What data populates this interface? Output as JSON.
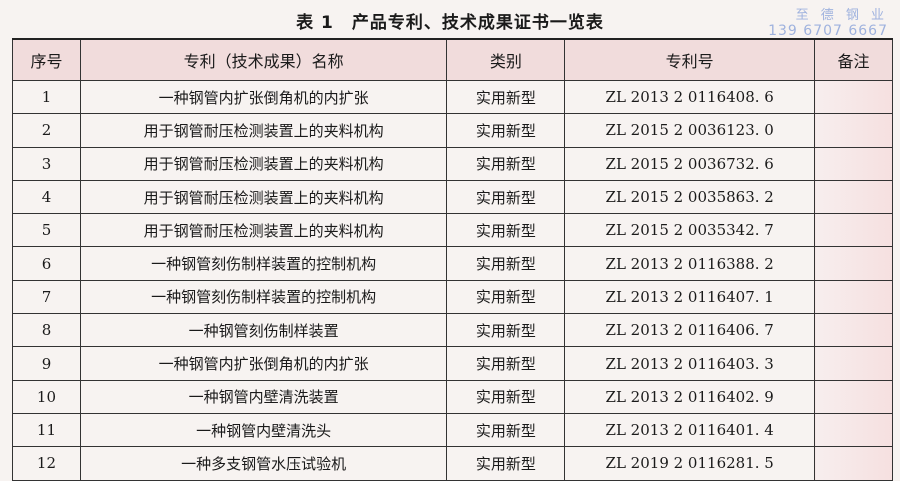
{
  "title": {
    "number": "表 1",
    "text": "产品专利、技术成果证书一览表"
  },
  "watermark": {
    "name": "至 德 钢 业",
    "phone": "139 6707 6667"
  },
  "table": {
    "headers": [
      "序号",
      "专利（技术成果）名称",
      "类别",
      "专利号",
      "备注"
    ],
    "rows": [
      {
        "no": "1",
        "name": "一种钢管内扩张倒角机的内扩张",
        "category": "实用新型",
        "patent": "ZL 2013 2 0116408. 6",
        "remark": ""
      },
      {
        "no": "2",
        "name": "用于钢管耐压检测装置上的夹料机构",
        "category": "实用新型",
        "patent": "ZL 2015 2 0036123. 0",
        "remark": ""
      },
      {
        "no": "3",
        "name": "用于钢管耐压检测装置上的夹料机构",
        "category": "实用新型",
        "patent": "ZL 2015 2 0036732. 6",
        "remark": ""
      },
      {
        "no": "4",
        "name": "用于钢管耐压检测装置上的夹料机构",
        "category": "实用新型",
        "patent": "ZL 2015 2 0035863. 2",
        "remark": ""
      },
      {
        "no": "5",
        "name": "用于钢管耐压检测装置上的夹料机构",
        "category": "实用新型",
        "patent": "ZL 2015 2 0035342. 7",
        "remark": ""
      },
      {
        "no": "6",
        "name": "一种钢管刻伤制样装置的控制机构",
        "category": "实用新型",
        "patent": "ZL 2013 2 0116388. 2",
        "remark": ""
      },
      {
        "no": "7",
        "name": "一种钢管刻伤制样装置的控制机构",
        "category": "实用新型",
        "patent": "ZL 2013 2 0116407. 1",
        "remark": ""
      },
      {
        "no": "8",
        "name": "一种钢管刻伤制样装置",
        "category": "实用新型",
        "patent": "ZL 2013 2 0116406. 7",
        "remark": ""
      },
      {
        "no": "9",
        "name": "一种钢管内扩张倒角机的内扩张",
        "category": "实用新型",
        "patent": "ZL 2013 2 0116403. 3",
        "remark": ""
      },
      {
        "no": "10",
        "name": "一种钢管内壁清洗装置",
        "category": "实用新型",
        "patent": "ZL 2013 2 0116402. 9",
        "remark": ""
      },
      {
        "no": "11",
        "name": "一种钢管内壁清洗头",
        "category": "实用新型",
        "patent": "ZL 2013 2 0116401. 4",
        "remark": ""
      },
      {
        "no": "12",
        "name": "一种多支钢管水压试验机",
        "category": "实用新型",
        "patent": "ZL 2019 2 0116281. 5",
        "remark": ""
      }
    ]
  }
}
